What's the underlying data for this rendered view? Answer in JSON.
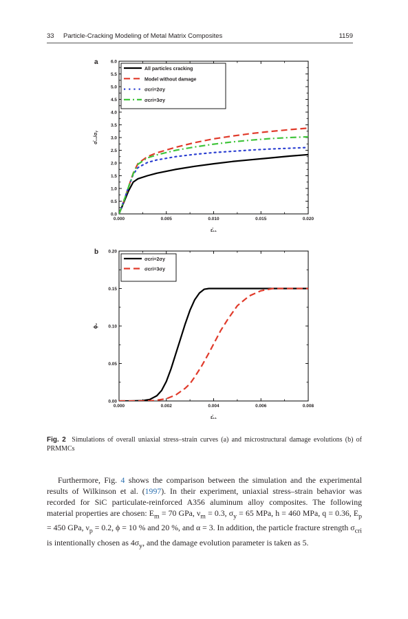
{
  "header": {
    "page_label": "33",
    "running_title": "Particle-Cracking Modeling of Metal Matrix Composites",
    "page_number": "1159"
  },
  "figure": {
    "panel_a_label": "a",
    "panel_b_label": "b",
    "caption_prefix": "Fig. 2",
    "caption_text": "Simulations of overall uniaxial stress–strain curves (a) and microstructural damage evolutions (b) of PRMMCs",
    "colors": {
      "black": "#000000",
      "red": "#e03a2a",
      "blue": "#2b3fd1",
      "green": "#3fc43a"
    }
  },
  "chart_data": [
    {
      "type": "line",
      "panel": "a",
      "xlabel": "ε̄₁₁",
      "ylabel": "σ̄₁₁/σᵧ",
      "xlim": [
        0.0,
        0.02
      ],
      "ylim": [
        0.0,
        6.0
      ],
      "x_ticks": [
        "0.000",
        "0.005",
        "0.010",
        "0.015",
        "0.020"
      ],
      "y_ticks": [
        "0.0",
        "0.5",
        "1.0",
        "1.5",
        "2.0",
        "2.5",
        "3.0",
        "3.5",
        "4.0",
        "4.5",
        "5.0",
        "5.5",
        "6.0"
      ],
      "legend_position": "top-left",
      "series": [
        {
          "name": "All particles cracking",
          "style": "solid",
          "color": "#000000",
          "x": [
            0,
            0.0005,
            0.001,
            0.0015,
            0.002,
            0.003,
            0.004,
            0.006,
            0.008,
            0.01,
            0.012,
            0.014,
            0.016,
            0.018,
            0.02
          ],
          "y": [
            0,
            0.45,
            0.9,
            1.25,
            1.38,
            1.5,
            1.6,
            1.75,
            1.87,
            1.97,
            2.06,
            2.13,
            2.2,
            2.27,
            2.33
          ]
        },
        {
          "name": "Model without damage",
          "style": "dashed",
          "color": "#e03a2a",
          "x": [
            0,
            0.0005,
            0.001,
            0.0015,
            0.002,
            0.003,
            0.004,
            0.006,
            0.008,
            0.01,
            0.012,
            0.014,
            0.016,
            0.018,
            0.02
          ],
          "y": [
            0,
            0.5,
            1.05,
            1.6,
            1.98,
            2.25,
            2.4,
            2.62,
            2.8,
            2.95,
            3.06,
            3.16,
            3.24,
            3.31,
            3.37
          ]
        },
        {
          "name": "σcri=2σy",
          "style": "dotted",
          "color": "#2b3fd1",
          "x": [
            0,
            0.0005,
            0.001,
            0.0015,
            0.002,
            0.003,
            0.004,
            0.006,
            0.008,
            0.01,
            0.012,
            0.014,
            0.016,
            0.018,
            0.02
          ],
          "y": [
            0,
            0.5,
            1.05,
            1.55,
            1.82,
            2.02,
            2.12,
            2.25,
            2.34,
            2.41,
            2.46,
            2.51,
            2.55,
            2.58,
            2.61
          ]
        },
        {
          "name": "σcri=3σy",
          "style": "dash-dot",
          "color": "#3fc43a",
          "x": [
            0,
            0.0005,
            0.001,
            0.0015,
            0.002,
            0.003,
            0.004,
            0.006,
            0.008,
            0.01,
            0.012,
            0.014,
            0.016,
            0.018,
            0.02
          ],
          "y": [
            0,
            0.5,
            1.05,
            1.58,
            1.95,
            2.2,
            2.32,
            2.5,
            2.63,
            2.74,
            2.83,
            2.9,
            2.96,
            3.0,
            3.03
          ]
        }
      ]
    },
    {
      "type": "line",
      "panel": "b",
      "xlabel": "ε̄₁₁",
      "ylabel": "ϕ₂",
      "xlim": [
        0.0,
        0.008
      ],
      "ylim": [
        0.0,
        0.2
      ],
      "x_ticks": [
        "0.000",
        "0.002",
        "0.004",
        "0.006",
        "0.008"
      ],
      "y_ticks": [
        "0.00",
        "0.05",
        "0.10",
        "0.15",
        "0.20"
      ],
      "legend_position": "top-left",
      "series": [
        {
          "name": "σcri=2σy",
          "style": "solid",
          "color": "#000000",
          "x": [
            0.0,
            0.0005,
            0.001,
            0.0013,
            0.0016,
            0.0018,
            0.002,
            0.0022,
            0.0024,
            0.0026,
            0.0028,
            0.003,
            0.0032,
            0.0034,
            0.0036,
            0.0038,
            0.004,
            0.005,
            0.006,
            0.007,
            0.008
          ],
          "y": [
            0.0,
            0.0,
            0.0005,
            0.002,
            0.007,
            0.014,
            0.026,
            0.043,
            0.063,
            0.083,
            0.103,
            0.121,
            0.135,
            0.144,
            0.149,
            0.15,
            0.15,
            0.15,
            0.15,
            0.15,
            0.15
          ]
        },
        {
          "name": "σcri=3σy",
          "style": "dashed",
          "color": "#e03a2a",
          "x": [
            0.0,
            0.001,
            0.0015,
            0.002,
            0.0024,
            0.0028,
            0.003,
            0.0032,
            0.0035,
            0.0038,
            0.004,
            0.0043,
            0.0046,
            0.005,
            0.0055,
            0.006,
            0.0065,
            0.007,
            0.008
          ],
          "y": [
            0.0,
            0.0,
            0.0005,
            0.003,
            0.008,
            0.017,
            0.023,
            0.032,
            0.047,
            0.064,
            0.076,
            0.094,
            0.109,
            0.127,
            0.14,
            0.147,
            0.15,
            0.15,
            0.15
          ]
        }
      ]
    }
  ],
  "body": {
    "p1_a": "Furthermore, Fig. ",
    "p1_fig": "4",
    "p1_b": " shows the comparison between the simulation and the experimental results of Wilkinson et al. (",
    "p1_year": "1997",
    "p1_c": "). In their experiment, uniaxial stress–strain behavior was recorded for SiC particulate-reinforced A356 aluminum alloy composites. The following material properties are chosen: E",
    "p1_d": " = 70 GPa, ν",
    "p1_e": " = 0.3, σ",
    "p1_f": " = 65 MPa, h = 460 MPa, q = 0.36, E",
    "p1_g": " = 450 GPa, ν",
    "p1_h": " = 0.2, ϕ = 10 % and 20 %, and α = 3. In addition, the particle fracture strength σ",
    "p1_i": " is intentionally chosen as 4σ",
    "p1_j": ", and the damage evolution parameter is taken as 5.",
    "sub_m": "m",
    "sub_y": "y",
    "sub_p": "p",
    "sub_cri": "cri"
  }
}
